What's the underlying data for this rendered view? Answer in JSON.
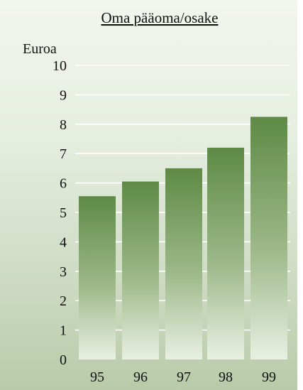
{
  "chart_data": {
    "type": "bar",
    "title": "Oma pääoma/osake",
    "ylabel": "Euroa",
    "categories": [
      "95",
      "96",
      "97",
      "98",
      "99"
    ],
    "values": [
      5.55,
      6.05,
      6.5,
      7.2,
      8.25
    ],
    "ylim": [
      0,
      10
    ],
    "yticks": [
      0,
      1,
      2,
      3,
      4,
      5,
      6,
      7,
      8,
      9,
      10
    ],
    "grid": true,
    "legend": "none",
    "colors": {
      "bar_top": "#5e8a45",
      "bar_bottom": "#e9f0e2",
      "grid": "#ffffff"
    }
  }
}
